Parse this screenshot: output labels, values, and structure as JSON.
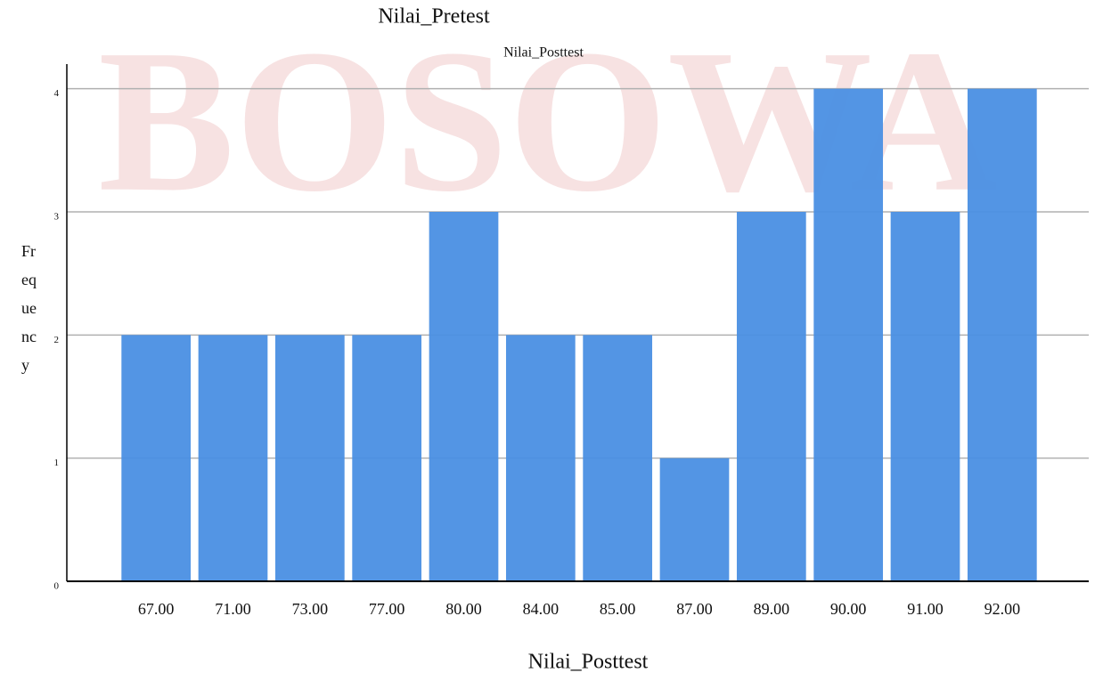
{
  "chart_data": {
    "type": "bar",
    "title": "Nilai_Pretest",
    "subtitle": "Nilai_Posttest",
    "x_label": "Nilai_Posttest",
    "y_label": "Frequency",
    "watermark": "BOSOWA",
    "categories": [
      "67.00",
      "71.00",
      "73.00",
      "77.00",
      "80.00",
      "84.00",
      "85.00",
      "87.00",
      "89.00",
      "90.00",
      "91.00",
      "92.00"
    ],
    "values": [
      2,
      2,
      2,
      2,
      3,
      2,
      2,
      1,
      3,
      4,
      3,
      4
    ],
    "color": "#4a8fe3",
    "ylim": [
      0,
      4.2
    ],
    "yticks": [
      0,
      1,
      2,
      3,
      4
    ],
    "grid": true
  }
}
